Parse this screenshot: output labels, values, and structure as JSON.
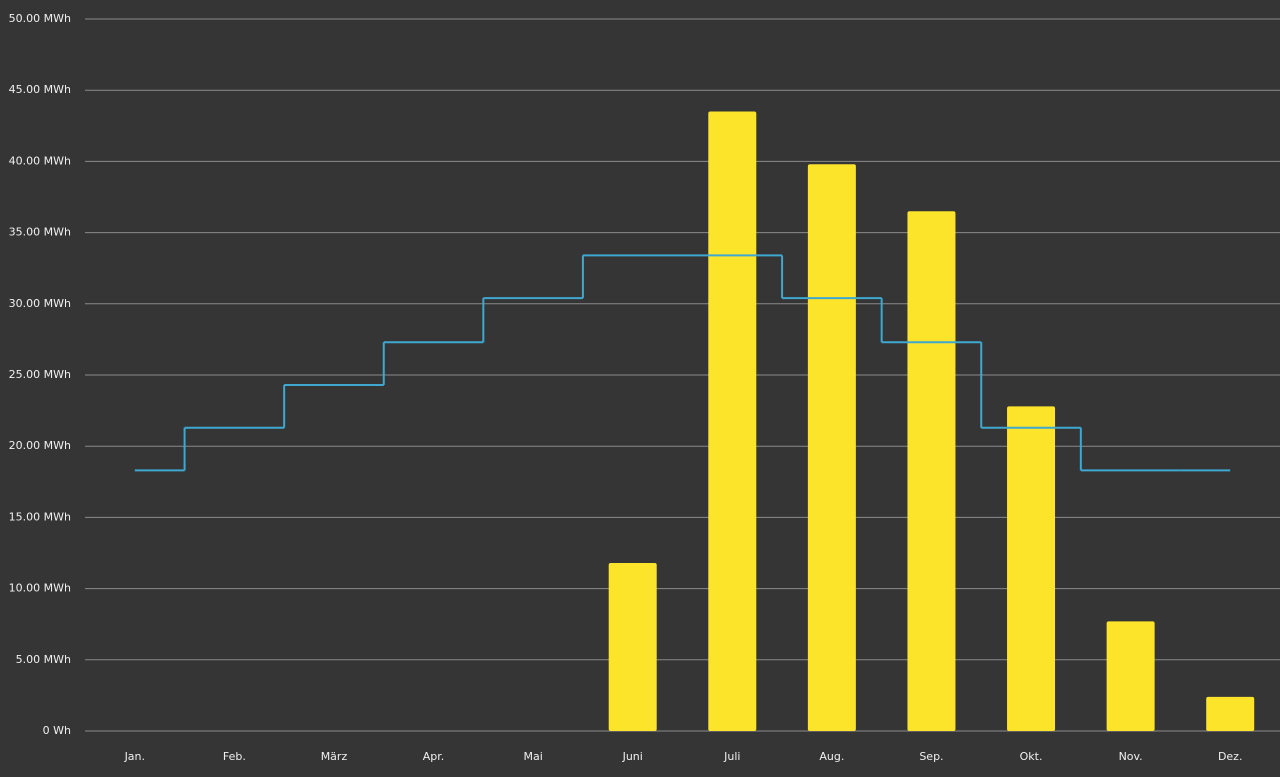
{
  "chart_data": {
    "type": "bar",
    "categories": [
      "Jan.",
      "Feb.",
      "März",
      "Apr.",
      "Mai",
      "Juni",
      "Juli",
      "Aug.",
      "Sep.",
      "Okt.",
      "Nov.",
      "Dez."
    ],
    "series": [
      {
        "type": "bar",
        "color": "#fbe42a",
        "values": [
          0,
          0,
          0,
          0,
          0,
          11.8,
          43.5,
          39.8,
          36.5,
          22.8,
          7.7,
          2.4
        ]
      },
      {
        "type": "step",
        "color": "#3ea8d0",
        "values": [
          18.3,
          21.3,
          24.3,
          27.3,
          30.4,
          33.4,
          33.4,
          30.4,
          27.3,
          21.3,
          18.3,
          18.3
        ]
      }
    ],
    "ylim": [
      0,
      50
    ],
    "yticks": [
      {
        "value": 0,
        "label": "0 Wh"
      },
      {
        "value": 5,
        "label": "5.00 MWh"
      },
      {
        "value": 10,
        "label": "10.00 MWh"
      },
      {
        "value": 15,
        "label": "15.00 MWh"
      },
      {
        "value": 20,
        "label": "20.00 MWh"
      },
      {
        "value": 25,
        "label": "25.00 MWh"
      },
      {
        "value": 30,
        "label": "30.00 MWh"
      },
      {
        "value": 35,
        "label": "35.00 MWh"
      },
      {
        "value": 40,
        "label": "40.00 MWh"
      },
      {
        "value": 45,
        "label": "45.00 MWh"
      },
      {
        "value": 50,
        "label": "50.00 MWh"
      }
    ],
    "grid": true
  }
}
